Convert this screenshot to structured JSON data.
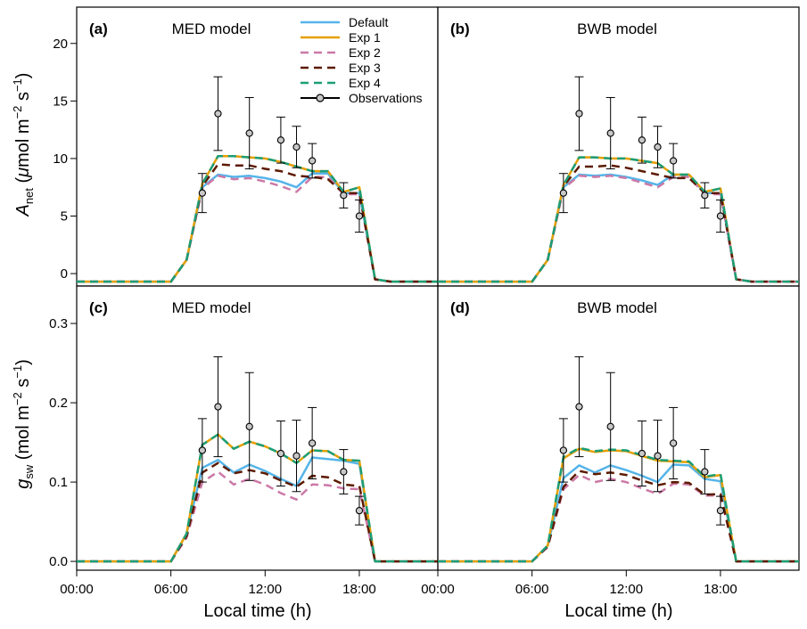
{
  "colors": {
    "Default": "#56b4e9",
    "Exp 1": "#e69f00",
    "Exp 2": "#cc79a7",
    "Exp 3": "#5c1a00",
    "Exp 4": "#1b9e77",
    "Observations": "#000000",
    "obs_fill": "#c8c8c8"
  },
  "axes": {
    "x_label": "Local time (h)",
    "y_label_top": {
      "main": "A",
      "sub": "net",
      "rest": " (",
      "mu": "μ",
      "unit": "mol m",
      "exp1": "−2",
      "mid": " s",
      "exp2": "−1",
      "close": ")"
    },
    "y_label_bottom": {
      "main": "g",
      "sub": "sw",
      "rest": " (",
      "unit": "mol m",
      "exp1": "−2",
      "mid": " s",
      "exp2": "−1",
      "close": ")"
    },
    "x_ticks": [
      "00:00",
      "06:00",
      "12:00",
      "18:00"
    ],
    "y_ticks_top": [
      "0",
      "5",
      "10",
      "15",
      "20"
    ],
    "y_ticks_bottom": [
      "0.0",
      "0.1",
      "0.2",
      "0.3"
    ]
  },
  "legend": {
    "entries": [
      {
        "name": "Default",
        "style": "solid"
      },
      {
        "name": "Exp 1",
        "style": "solid"
      },
      {
        "name": "Exp 2",
        "style": "dashed"
      },
      {
        "name": "Exp 3",
        "style": "dashed"
      },
      {
        "name": "Exp 4",
        "style": "dashed"
      },
      {
        "name": "Observations",
        "style": "marker"
      }
    ]
  },
  "chart_data": [
    {
      "panel": "(a)",
      "title": "MED model",
      "type": "line",
      "xlim": [
        0,
        23
      ],
      "ylim": [
        -1,
        23
      ],
      "yticks": [
        0,
        5,
        10,
        15,
        20
      ],
      "x": [
        0,
        1,
        2,
        3,
        4,
        5,
        6,
        7,
        8,
        9,
        10,
        11,
        12,
        13,
        14,
        15,
        16,
        17,
        18,
        19,
        20,
        21,
        22,
        23
      ],
      "series": [
        {
          "name": "Default",
          "values": [
            -0.7,
            -0.7,
            -0.7,
            -0.7,
            -0.7,
            -0.7,
            -0.7,
            1.2,
            7.5,
            8.6,
            8.4,
            8.5,
            8.3,
            8.0,
            7.5,
            8.7,
            8.7,
            7.0,
            7.0,
            -0.5,
            -0.7,
            -0.7,
            -0.7,
            -0.7
          ]
        },
        {
          "name": "Exp 1",
          "values": [
            -0.7,
            -0.7,
            -0.7,
            -0.7,
            -0.7,
            -0.7,
            -0.7,
            1.2,
            7.8,
            10.2,
            10.2,
            10.1,
            10.0,
            9.7,
            9.3,
            8.9,
            8.9,
            7.1,
            7.5,
            -0.5,
            -0.7,
            -0.7,
            -0.7,
            -0.7
          ]
        },
        {
          "name": "Exp 2",
          "values": [
            -0.7,
            -0.7,
            -0.7,
            -0.7,
            -0.7,
            -0.7,
            -0.7,
            1.2,
            7.4,
            8.5,
            8.2,
            8.3,
            8.0,
            7.6,
            7.1,
            8.4,
            8.4,
            6.9,
            6.9,
            -0.5,
            -0.7,
            -0.7,
            -0.7,
            -0.7
          ]
        },
        {
          "name": "Exp 3",
          "values": [
            -0.7,
            -0.7,
            -0.7,
            -0.7,
            -0.7,
            -0.7,
            -0.7,
            1.2,
            7.6,
            9.5,
            9.4,
            9.4,
            9.1,
            8.9,
            8.5,
            8.4,
            8.2,
            7.0,
            7.0,
            -0.5,
            -0.7,
            -0.7,
            -0.7,
            -0.7
          ]
        },
        {
          "name": "Exp 4",
          "values": [
            -0.7,
            -0.7,
            -0.7,
            -0.7,
            -0.7,
            -0.7,
            -0.7,
            1.2,
            7.8,
            10.2,
            10.2,
            10.1,
            10.0,
            9.7,
            9.3,
            8.9,
            8.9,
            7.1,
            7.5,
            -0.5,
            -0.7,
            -0.7,
            -0.7,
            -0.7
          ]
        }
      ],
      "observations": {
        "x": [
          8,
          9,
          11,
          13,
          14,
          15,
          17,
          18
        ],
        "y": [
          7.0,
          13.9,
          12.2,
          11.6,
          11.0,
          9.8,
          6.8,
          5.0
        ],
        "err": [
          1.7,
          3.2,
          3.1,
          2.0,
          1.8,
          1.5,
          1.1,
          1.4
        ]
      }
    },
    {
      "panel": "(b)",
      "title": "BWB model",
      "type": "line",
      "xlim": [
        0,
        23
      ],
      "ylim": [
        -1,
        23
      ],
      "yticks": [
        0,
        5,
        10,
        15,
        20
      ],
      "x": [
        0,
        1,
        2,
        3,
        4,
        5,
        6,
        7,
        8,
        9,
        10,
        11,
        12,
        13,
        14,
        15,
        16,
        17,
        18,
        19,
        20,
        21,
        22,
        23
      ],
      "series": [
        {
          "name": "Default",
          "values": [
            -0.7,
            -0.7,
            -0.7,
            -0.7,
            -0.7,
            -0.7,
            -0.7,
            1.2,
            7.5,
            8.6,
            8.5,
            8.6,
            8.4,
            8.1,
            7.7,
            8.6,
            8.6,
            7.0,
            7.0,
            -0.5,
            -0.7,
            -0.7,
            -0.7,
            -0.7
          ]
        },
        {
          "name": "Exp 1",
          "values": [
            -0.7,
            -0.7,
            -0.7,
            -0.7,
            -0.7,
            -0.7,
            -0.7,
            1.2,
            7.7,
            10.1,
            10.1,
            10.0,
            10.0,
            9.8,
            9.6,
            8.6,
            8.6,
            7.1,
            7.4,
            -0.5,
            -0.7,
            -0.7,
            -0.7,
            -0.7
          ]
        },
        {
          "name": "Exp 2",
          "values": [
            -0.7,
            -0.7,
            -0.7,
            -0.7,
            -0.7,
            -0.7,
            -0.7,
            1.2,
            7.4,
            8.5,
            8.4,
            8.5,
            8.3,
            7.9,
            7.5,
            8.4,
            8.4,
            6.9,
            6.9,
            -0.5,
            -0.7,
            -0.7,
            -0.7,
            -0.7
          ]
        },
        {
          "name": "Exp 3",
          "values": [
            -0.7,
            -0.7,
            -0.7,
            -0.7,
            -0.7,
            -0.7,
            -0.7,
            1.2,
            7.6,
            9.3,
            9.3,
            9.4,
            9.2,
            8.9,
            8.6,
            8.3,
            8.3,
            7.0,
            7.0,
            -0.5,
            -0.7,
            -0.7,
            -0.7,
            -0.7
          ]
        },
        {
          "name": "Exp 4",
          "values": [
            -0.7,
            -0.7,
            -0.7,
            -0.7,
            -0.7,
            -0.7,
            -0.7,
            1.2,
            7.7,
            10.1,
            10.1,
            10.0,
            10.0,
            9.8,
            9.6,
            8.6,
            8.6,
            7.1,
            7.4,
            -0.5,
            -0.7,
            -0.7,
            -0.7,
            -0.7
          ]
        }
      ],
      "observations": {
        "x": [
          8,
          9,
          11,
          13,
          14,
          15,
          17,
          18
        ],
        "y": [
          7.0,
          13.9,
          12.2,
          11.6,
          11.0,
          9.8,
          6.8,
          5.0
        ],
        "err": [
          1.7,
          3.2,
          3.1,
          2.0,
          1.8,
          1.5,
          1.1,
          1.4
        ]
      }
    },
    {
      "panel": "(c)",
      "title": "MED model",
      "type": "line",
      "xlim": [
        0,
        23
      ],
      "ylim": [
        -0.01,
        0.345
      ],
      "yticks": [
        0.0,
        0.1,
        0.2,
        0.3
      ],
      "x": [
        0,
        1,
        2,
        3,
        4,
        5,
        6,
        7,
        8,
        9,
        10,
        11,
        12,
        13,
        14,
        15,
        16,
        17,
        18,
        19,
        20,
        21,
        22,
        23
      ],
      "series": [
        {
          "name": "Default",
          "values": [
            0,
            0,
            0,
            0,
            0,
            0,
            0,
            0.035,
            0.118,
            0.128,
            0.112,
            0.122,
            0.114,
            0.104,
            0.095,
            0.131,
            0.129,
            0.127,
            0.123,
            0,
            0,
            0,
            0,
            0
          ]
        },
        {
          "name": "Exp 1",
          "values": [
            0,
            0,
            0,
            0,
            0,
            0,
            0,
            0.035,
            0.147,
            0.16,
            0.142,
            0.151,
            0.145,
            0.136,
            0.124,
            0.14,
            0.139,
            0.128,
            0.127,
            0,
            0,
            0,
            0,
            0
          ]
        },
        {
          "name": "Exp 2",
          "values": [
            0,
            0,
            0,
            0,
            0,
            0,
            0,
            0.03,
            0.1,
            0.113,
            0.097,
            0.104,
            0.097,
            0.086,
            0.078,
            0.097,
            0.096,
            0.092,
            0.091,
            0,
            0,
            0,
            0,
            0
          ]
        },
        {
          "name": "Exp 3",
          "values": [
            0,
            0,
            0,
            0,
            0,
            0,
            0,
            0.032,
            0.112,
            0.124,
            0.111,
            0.115,
            0.111,
            0.102,
            0.094,
            0.108,
            0.106,
            0.097,
            0.095,
            0,
            0,
            0,
            0,
            0
          ]
        },
        {
          "name": "Exp 4",
          "values": [
            0,
            0,
            0,
            0,
            0,
            0,
            0,
            0.035,
            0.147,
            0.16,
            0.142,
            0.151,
            0.145,
            0.136,
            0.124,
            0.14,
            0.139,
            0.128,
            0.127,
            0,
            0,
            0,
            0,
            0
          ]
        }
      ],
      "observations": {
        "x": [
          8,
          9,
          11,
          13,
          14,
          15,
          17,
          18
        ],
        "y": [
          0.14,
          0.195,
          0.17,
          0.136,
          0.133,
          0.149,
          0.113,
          0.064
        ],
        "err": [
          0.04,
          0.063,
          0.068,
          0.041,
          0.045,
          0.045,
          0.028,
          0.018
        ]
      }
    },
    {
      "panel": "(d)",
      "title": "BWB model",
      "type": "line",
      "xlim": [
        0,
        23
      ],
      "ylim": [
        -0.01,
        0.345
      ],
      "yticks": [
        0.0,
        0.1,
        0.2,
        0.3
      ],
      "x": [
        0,
        1,
        2,
        3,
        4,
        5,
        6,
        7,
        8,
        9,
        10,
        11,
        12,
        13,
        14,
        15,
        16,
        17,
        18,
        19,
        20,
        21,
        22,
        23
      ],
      "series": [
        {
          "name": "Default",
          "values": [
            0,
            0,
            0,
            0,
            0,
            0,
            0,
            0.02,
            0.105,
            0.121,
            0.112,
            0.121,
            0.115,
            0.108,
            0.1,
            0.122,
            0.121,
            0.104,
            0.101,
            0,
            0,
            0,
            0,
            0
          ]
        },
        {
          "name": "Exp 1",
          "values": [
            0,
            0,
            0,
            0,
            0,
            0,
            0,
            0.02,
            0.13,
            0.142,
            0.138,
            0.14,
            0.139,
            0.133,
            0.127,
            0.126,
            0.125,
            0.106,
            0.109,
            0,
            0,
            0,
            0,
            0
          ]
        },
        {
          "name": "Exp 2",
          "values": [
            0,
            0,
            0,
            0,
            0,
            0,
            0,
            0.018,
            0.091,
            0.109,
            0.1,
            0.104,
            0.1,
            0.092,
            0.085,
            0.098,
            0.097,
            0.083,
            0.083,
            0,
            0,
            0,
            0,
            0
          ]
        },
        {
          "name": "Exp 3",
          "values": [
            0,
            0,
            0,
            0,
            0,
            0,
            0,
            0.019,
            0.094,
            0.114,
            0.11,
            0.112,
            0.109,
            0.102,
            0.096,
            0.1,
            0.099,
            0.084,
            0.085,
            0,
            0,
            0,
            0,
            0
          ]
        },
        {
          "name": "Exp 4",
          "values": [
            0,
            0,
            0,
            0,
            0,
            0,
            0,
            0.02,
            0.132,
            0.143,
            0.139,
            0.141,
            0.14,
            0.134,
            0.128,
            0.127,
            0.126,
            0.107,
            0.11,
            0,
            0,
            0,
            0,
            0
          ]
        }
      ],
      "observations": {
        "x": [
          8,
          9,
          11,
          13,
          14,
          15,
          17,
          18
        ],
        "y": [
          0.14,
          0.195,
          0.17,
          0.136,
          0.133,
          0.149,
          0.113,
          0.064
        ],
        "err": [
          0.04,
          0.063,
          0.068,
          0.041,
          0.045,
          0.045,
          0.028,
          0.018
        ]
      }
    }
  ]
}
